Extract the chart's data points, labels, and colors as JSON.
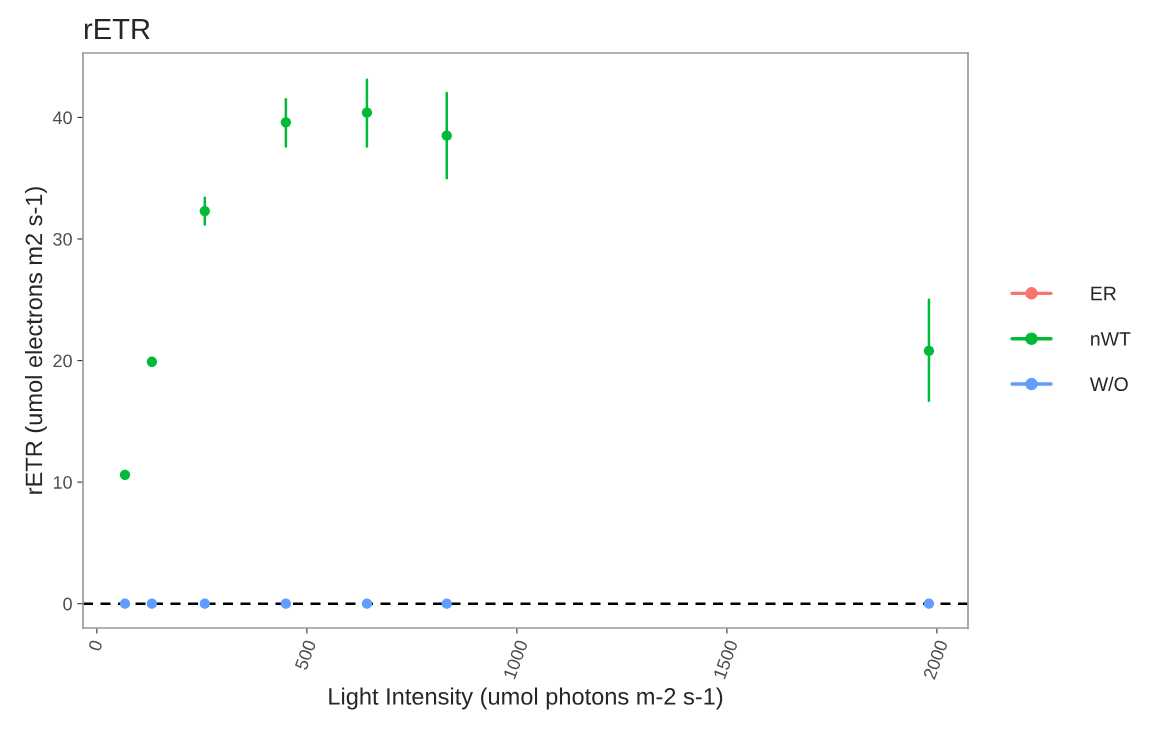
{
  "chart_data": {
    "type": "scatter",
    "title": "rETR",
    "xlabel": "Light Intensity (umol photons m-2 s-1)",
    "ylabel": "rETR (umol electrons m2 s-1)",
    "x": [
      67,
      131,
      257,
      450,
      643,
      833,
      1981
    ],
    "series": [
      {
        "name": "ER",
        "color": "#f8766d",
        "values": [
          null,
          null,
          null,
          null,
          null,
          null,
          null
        ]
      },
      {
        "name": "nWT",
        "color": "#00ba38",
        "values": [
          10.6,
          19.9,
          32.3,
          39.6,
          40.4,
          38.5,
          20.8
        ],
        "errors": [
          null,
          null,
          [
            31.2,
            33.4
          ],
          [
            37.6,
            41.5
          ],
          [
            37.6,
            43.1
          ],
          [
            35.0,
            42.0
          ],
          [
            16.7,
            25.0
          ]
        ]
      },
      {
        "name": "W/O",
        "color": "#619cff",
        "values": [
          0,
          0,
          0,
          0,
          0,
          0,
          0
        ]
      }
    ],
    "xlim": [
      -33,
      2074
    ],
    "ylim": [
      -2,
      45.3
    ],
    "xticks": [
      0,
      500,
      1000,
      1500,
      2000
    ],
    "yticks": [
      0,
      10,
      20,
      30,
      40
    ],
    "ref_lines": [
      {
        "axis": "y",
        "value": 0,
        "color": "#000000",
        "line_style": "dashed"
      }
    ],
    "grid": false,
    "legend": "right",
    "marker": "circle"
  }
}
